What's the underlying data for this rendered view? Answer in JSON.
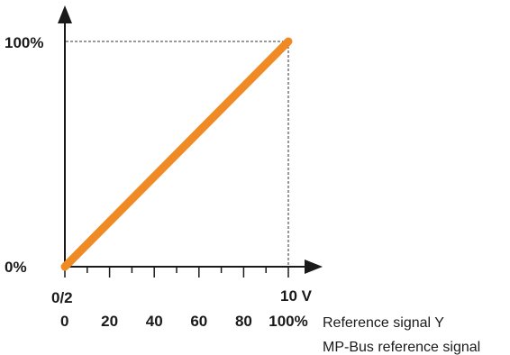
{
  "chart_data": {
    "type": "line",
    "title": "",
    "x_voltage_ticks": [
      "0/2",
      "10 V"
    ],
    "x_percent_ticks": [
      "0",
      "20",
      "40",
      "60",
      "80",
      "100%"
    ],
    "y_tick_labels": [
      "0%",
      "100%"
    ],
    "x_axis_labels": [
      "Reference signal Y",
      "MP-Bus reference signal"
    ],
    "x": [
      0,
      100
    ],
    "xlim": [
      0,
      100
    ],
    "ylim": [
      0,
      100
    ],
    "series": [
      {
        "values": [
          0,
          100
        ]
      }
    ],
    "colors": {
      "line": "#f08a24",
      "axis": "#1a1a1a",
      "guide": "#333333"
    },
    "grid": false,
    "minor_ticks_per_major": 2
  }
}
